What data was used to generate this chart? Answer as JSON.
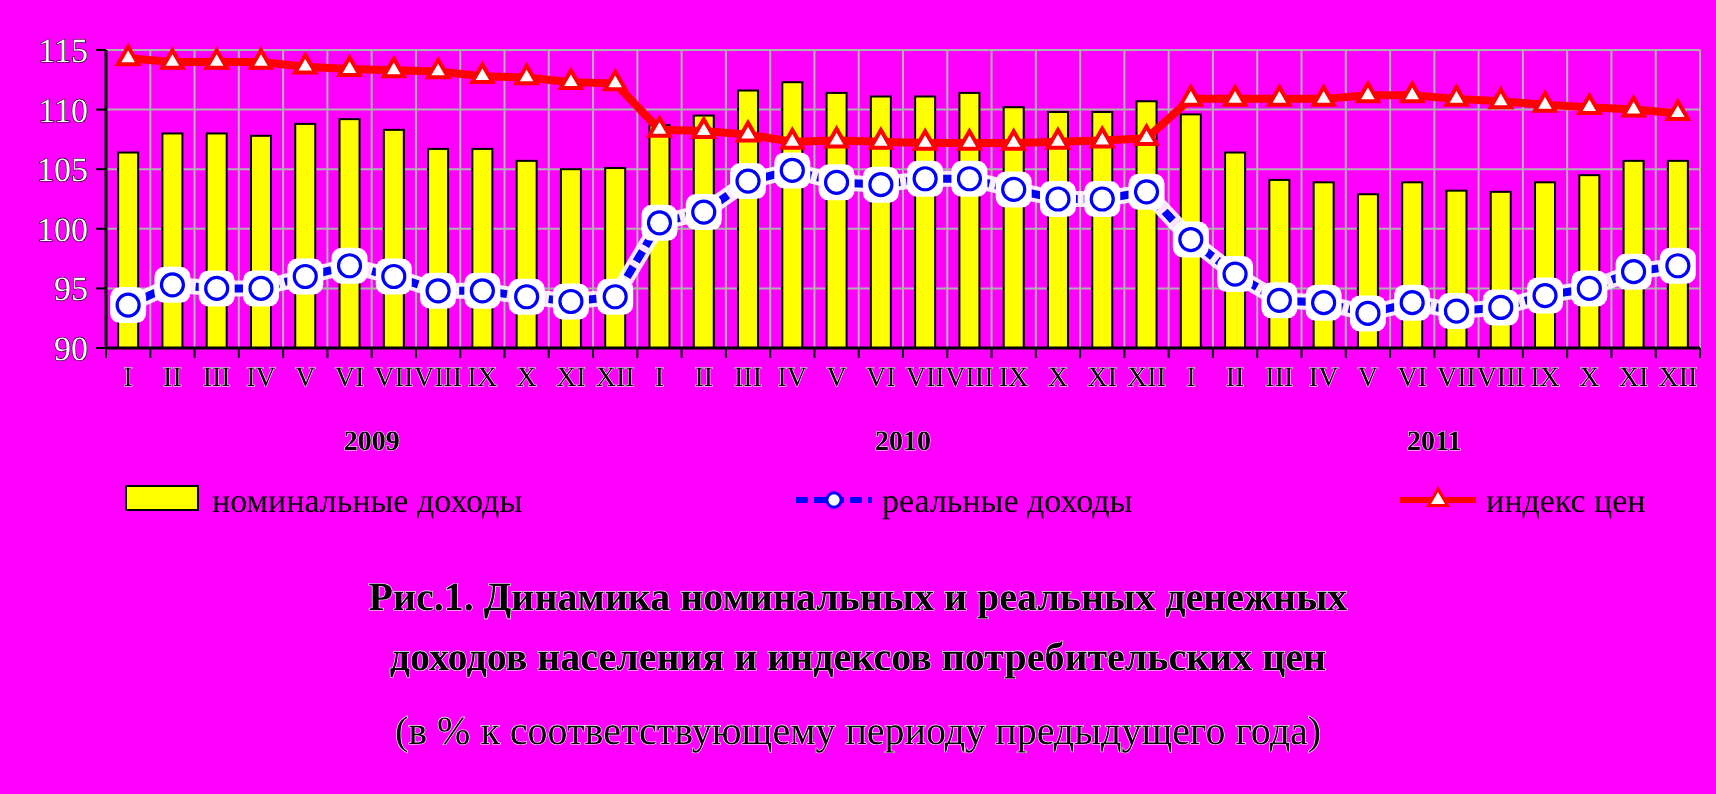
{
  "chart_data": {
    "type": "bar",
    "title": "Рис.1. Динамика номинальных и реальных денежных доходов населения и индексов потребительских цен",
    "subtitle": "(в % к соответствующему периоду предыдущего года)",
    "categories": [
      "I",
      "II",
      "III",
      "IV",
      "V",
      "VI",
      "VII",
      "VIII",
      "IX",
      "X",
      "XI",
      "XII",
      "I",
      "II",
      "III",
      "IV",
      "V",
      "VI",
      "VII",
      "VIII",
      "IX",
      "X",
      "XI",
      "XII",
      "I",
      "II",
      "III",
      "IV",
      "V",
      "VI",
      "VII",
      "VIII",
      "IX",
      "X",
      "XI",
      "XII"
    ],
    "annotations": [
      "2009",
      "2010",
      "2011"
    ],
    "series": [
      {
        "name": "номинальные доходы",
        "color": "#ffff00",
        "values": [
          106.4,
          108.0,
          108.0,
          107.8,
          108.8,
          109.2,
          108.3,
          106.7,
          106.7,
          105.7,
          105.0,
          105.1,
          108.7,
          109.5,
          111.6,
          112.3,
          111.4,
          111.1,
          111.1,
          111.4,
          110.2,
          109.8,
          109.8,
          110.7,
          109.6,
          106.4,
          104.1,
          103.9,
          102.9,
          103.9,
          103.2,
          103.1,
          103.9,
          104.5,
          105.7,
          105.7
        ]
      },
      {
        "name": "реальные доходы",
        "type": "line",
        "color": "#0000ff",
        "marker": "circle",
        "line_style": "dashed",
        "values": [
          93.6,
          95.3,
          95.0,
          95.0,
          96.0,
          96.9,
          96.0,
          94.8,
          94.8,
          94.3,
          93.9,
          94.3,
          100.5,
          101.4,
          104.0,
          104.9,
          103.9,
          103.7,
          104.2,
          104.2,
          103.3,
          102.5,
          102.5,
          103.1,
          99.1,
          96.2,
          94.0,
          93.8,
          92.9,
          93.8,
          93.1,
          93.4,
          94.4,
          95.0,
          96.4,
          96.9
        ]
      },
      {
        "name": "индекс цен",
        "type": "line",
        "color": "#ff0000",
        "marker": "triangle",
        "line_style": "solid",
        "values": [
          114.3,
          114.0,
          114.0,
          114.0,
          113.6,
          113.4,
          113.3,
          113.2,
          112.8,
          112.7,
          112.3,
          112.2,
          108.3,
          108.2,
          107.9,
          107.3,
          107.4,
          107.3,
          107.2,
          107.2,
          107.2,
          107.3,
          107.4,
          107.6,
          110.9,
          110.9,
          110.9,
          110.9,
          111.2,
          111.2,
          110.9,
          110.7,
          110.4,
          110.2,
          110.0,
          109.7
        ]
      }
    ],
    "ylim": [
      90,
      115
    ],
    "yticks": [
      90,
      95,
      100,
      105,
      110,
      115
    ],
    "grid": true,
    "legend": "bottom"
  }
}
